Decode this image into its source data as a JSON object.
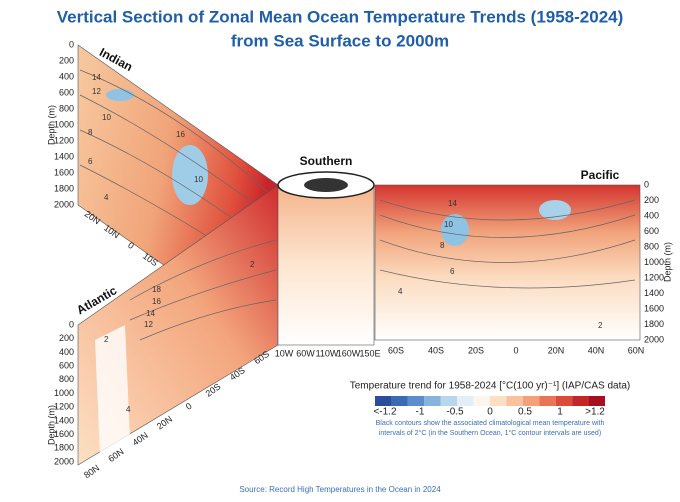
{
  "header": {
    "title_line1": "Vertical Section of Zonal Mean Ocean Temperature Trends (1958-2024)",
    "title_line2": "from Sea Surface to 2000m"
  },
  "panels": {
    "indian": {
      "label": "Indian",
      "depth_label": "Depth (m)",
      "depth_ticks": [
        0,
        200,
        400,
        600,
        800,
        1000,
        1200,
        1400,
        1600,
        1800,
        2000
      ],
      "x_labels": [
        "20N",
        "10N",
        "0",
        "10S"
      ],
      "contours": [
        "14",
        "12",
        "10",
        "8",
        "6",
        "4",
        "16",
        "10"
      ]
    },
    "atlantic": {
      "label": "Atlantic",
      "depth_label": "Depth (m)",
      "depth_ticks": [
        0,
        200,
        400,
        600,
        800,
        1000,
        1200,
        1400,
        1600,
        1800,
        2000
      ],
      "x_labels": [
        "80N",
        "60N",
        "40N",
        "20N",
        "0",
        "20S",
        "40S",
        "60S"
      ],
      "contours": [
        "18",
        "16",
        "14",
        "12",
        "2",
        "4",
        "2"
      ]
    },
    "southern": {
      "label": "Southern",
      "x_labels": [
        "10W",
        "60W",
        "110W",
        "160W",
        "150E"
      ]
    },
    "pacific": {
      "label": "Pacific",
      "depth_label": "Depth (m)",
      "depth_ticks": [
        0,
        200,
        400,
        600,
        800,
        1000,
        1200,
        1400,
        1600,
        1800,
        2000
      ],
      "x_labels": [
        "60S",
        "40S",
        "20S",
        "0",
        "20N",
        "40N",
        "60N"
      ],
      "contours": [
        "14",
        "10",
        "8",
        "6",
        "4",
        "2"
      ]
    }
  },
  "colorbar": {
    "title": "Temperature trend for 1958-2024 [°C(100 yr)⁻¹] (IAP/CAS data)",
    "ticks": [
      "<-1.2",
      "-1",
      "-0.5",
      "0",
      "0.5",
      "1",
      ">1.2"
    ],
    "caption": [
      "Black contours show the associated climatological mean temperature with",
      "intervals of 2°C (in the Southern Ocean, 1°C contour intervals are used)"
    ]
  },
  "footer": {
    "source": "Source: Record High Temperatures in the Ocean in 2024"
  }
}
